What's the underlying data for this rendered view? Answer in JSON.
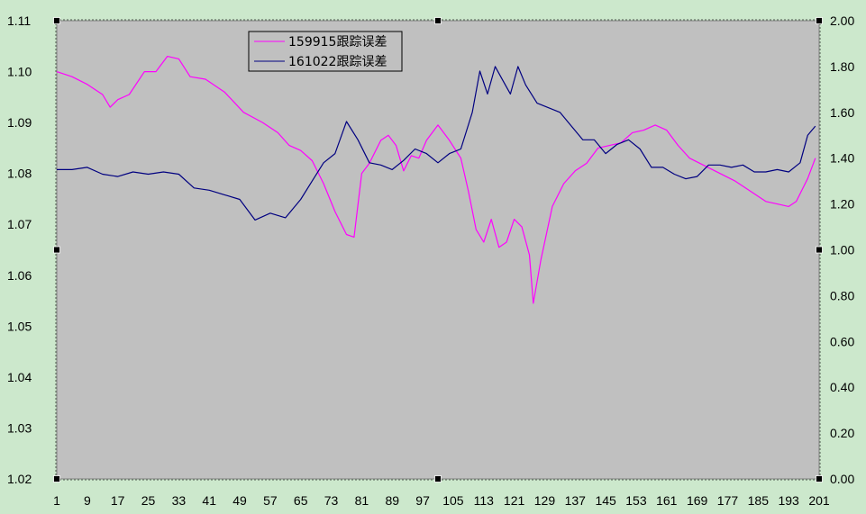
{
  "chart_data": {
    "type": "line",
    "title": "",
    "grid": false,
    "legend_position": "top-left",
    "plot_background": "#c0c0c0",
    "x_ticks": [
      "1",
      "9",
      "17",
      "25",
      "33",
      "41",
      "49",
      "57",
      "65",
      "73",
      "81",
      "89",
      "97",
      "105",
      "113",
      "121",
      "129",
      "137",
      "145",
      "153",
      "161",
      "169",
      "177",
      "185",
      "193",
      "201"
    ],
    "xlim": [
      1,
      201
    ],
    "y_left": {
      "lim": [
        1.02,
        1.11
      ],
      "ticks": [
        "1.02",
        "1.03",
        "1.04",
        "1.05",
        "1.06",
        "1.07",
        "1.08",
        "1.09",
        "1.10",
        "1.11"
      ]
    },
    "y_right": {
      "lim": [
        0.0,
        2.0
      ],
      "ticks": [
        "0.00",
        "0.20",
        "0.40",
        "0.60",
        "0.80",
        "1.00",
        "1.20",
        "1.40",
        "1.60",
        "1.80",
        "2.00"
      ]
    },
    "series": [
      {
        "name": "159915跟踪误差",
        "color": "#ff00ff",
        "axis": "left",
        "points": [
          [
            1,
            1.1
          ],
          [
            5,
            1.099
          ],
          [
            9,
            1.0975
          ],
          [
            13,
            1.0955
          ],
          [
            15,
            1.093
          ],
          [
            17,
            1.0945
          ],
          [
            20,
            1.0955
          ],
          [
            24,
            1.1
          ],
          [
            27,
            1.1
          ],
          [
            30,
            1.103
          ],
          [
            33,
            1.1025
          ],
          [
            36,
            1.099
          ],
          [
            40,
            1.0985
          ],
          [
            45,
            1.096
          ],
          [
            50,
            1.092
          ],
          [
            55,
            1.09
          ],
          [
            59,
            1.088
          ],
          [
            62,
            1.0855
          ],
          [
            65,
            1.0845
          ],
          [
            68,
            1.0825
          ],
          [
            71,
            1.078
          ],
          [
            74,
            1.0725
          ],
          [
            77,
            1.068
          ],
          [
            79,
            1.0675
          ],
          [
            81,
            1.08
          ],
          [
            83,
            1.082
          ],
          [
            86,
            1.0865
          ],
          [
            88,
            1.0875
          ],
          [
            90,
            1.0855
          ],
          [
            92,
            1.0805
          ],
          [
            94,
            1.0835
          ],
          [
            96,
            1.083
          ],
          [
            98,
            1.0865
          ],
          [
            101,
            1.0895
          ],
          [
            104,
            1.0865
          ],
          [
            107,
            1.083
          ],
          [
            109,
            1.0765
          ],
          [
            111,
            1.069
          ],
          [
            113,
            1.0665
          ],
          [
            115,
            1.071
          ],
          [
            117,
            1.0655
          ],
          [
            119,
            1.0665
          ],
          [
            121,
            1.071
          ],
          [
            123,
            1.0695
          ],
          [
            125,
            1.064
          ],
          [
            126,
            1.0545
          ],
          [
            128,
            1.063
          ],
          [
            131,
            1.0735
          ],
          [
            134,
            1.078
          ],
          [
            137,
            1.0805
          ],
          [
            140,
            1.082
          ],
          [
            143,
            1.085
          ],
          [
            146,
            1.0855
          ],
          [
            149,
            1.086
          ],
          [
            152,
            1.088
          ],
          [
            155,
            1.0885
          ],
          [
            158,
            1.0895
          ],
          [
            161,
            1.0885
          ],
          [
            164,
            1.0855
          ],
          [
            167,
            1.083
          ],
          [
            171,
            1.0815
          ],
          [
            175,
            1.08
          ],
          [
            179,
            1.0785
          ],
          [
            183,
            1.0765
          ],
          [
            187,
            1.0745
          ],
          [
            190,
            1.074
          ],
          [
            193,
            1.0735
          ],
          [
            195,
            1.0745
          ],
          [
            198,
            1.079
          ],
          [
            200,
            1.083
          ]
        ]
      },
      {
        "name": "161022跟踪误差",
        "color": "#000080",
        "axis": "right",
        "points": [
          [
            1,
            1.35
          ],
          [
            5,
            1.35
          ],
          [
            9,
            1.36
          ],
          [
            13,
            1.33
          ],
          [
            17,
            1.32
          ],
          [
            21,
            1.34
          ],
          [
            25,
            1.33
          ],
          [
            29,
            1.34
          ],
          [
            33,
            1.33
          ],
          [
            37,
            1.27
          ],
          [
            41,
            1.26
          ],
          [
            45,
            1.24
          ],
          [
            49,
            1.22
          ],
          [
            53,
            1.13
          ],
          [
            57,
            1.16
          ],
          [
            61,
            1.14
          ],
          [
            65,
            1.22
          ],
          [
            68,
            1.3
          ],
          [
            71,
            1.38
          ],
          [
            74,
            1.42
          ],
          [
            77,
            1.56
          ],
          [
            80,
            1.48
          ],
          [
            83,
            1.38
          ],
          [
            86,
            1.37
          ],
          [
            89,
            1.35
          ],
          [
            92,
            1.39
          ],
          [
            95,
            1.44
          ],
          [
            98,
            1.42
          ],
          [
            101,
            1.38
          ],
          [
            104,
            1.42
          ],
          [
            107,
            1.44
          ],
          [
            110,
            1.6
          ],
          [
            112,
            1.78
          ],
          [
            114,
            1.68
          ],
          [
            116,
            1.8
          ],
          [
            118,
            1.74
          ],
          [
            120,
            1.68
          ],
          [
            122,
            1.8
          ],
          [
            124,
            1.72
          ],
          [
            127,
            1.64
          ],
          [
            130,
            1.62
          ],
          [
            133,
            1.6
          ],
          [
            136,
            1.54
          ],
          [
            139,
            1.48
          ],
          [
            142,
            1.48
          ],
          [
            145,
            1.42
          ],
          [
            148,
            1.46
          ],
          [
            151,
            1.48
          ],
          [
            154,
            1.44
          ],
          [
            157,
            1.36
          ],
          [
            160,
            1.36
          ],
          [
            163,
            1.33
          ],
          [
            166,
            1.31
          ],
          [
            169,
            1.32
          ],
          [
            172,
            1.37
          ],
          [
            175,
            1.37
          ],
          [
            178,
            1.36
          ],
          [
            181,
            1.37
          ],
          [
            184,
            1.34
          ],
          [
            187,
            1.34
          ],
          [
            190,
            1.35
          ],
          [
            193,
            1.34
          ],
          [
            196,
            1.38
          ],
          [
            198,
            1.5
          ],
          [
            200,
            1.54
          ]
        ]
      }
    ]
  }
}
